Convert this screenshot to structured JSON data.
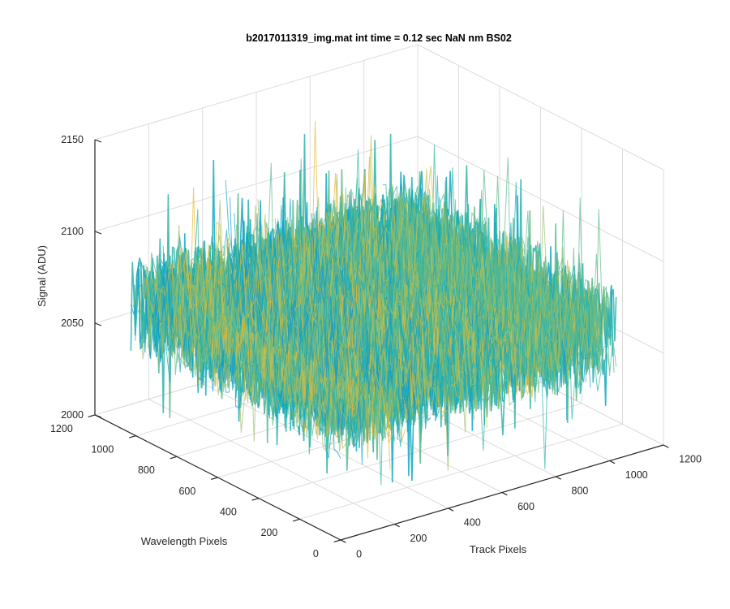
{
  "chart_data": {
    "type": "surface",
    "title": "b2017011319_img.mat int time = 0.12 sec  NaN nm BS02",
    "xlabel": "Track Pixels",
    "ylabel": "Wavelength Pixels",
    "zlabel": "Signal (ADU)",
    "xlim": [
      0,
      1200
    ],
    "ylim": [
      0,
      1200
    ],
    "zlim": [
      2000,
      2150
    ],
    "x_ticks": [
      "0",
      "200",
      "400",
      "600",
      "800",
      "1000",
      "1200"
    ],
    "y_ticks": [
      "0",
      "200",
      "400",
      "600",
      "800",
      "1000",
      "1200"
    ],
    "z_ticks": [
      "2000",
      "2050",
      "2100",
      "2150"
    ],
    "surface_extent": {
      "x": [
        0,
        1024
      ],
      "y": [
        0,
        1024
      ]
    },
    "approx_signal_range": [
      2010,
      2130
    ],
    "approx_mean_signal": 2070,
    "grid": true,
    "colormap": "parula"
  }
}
